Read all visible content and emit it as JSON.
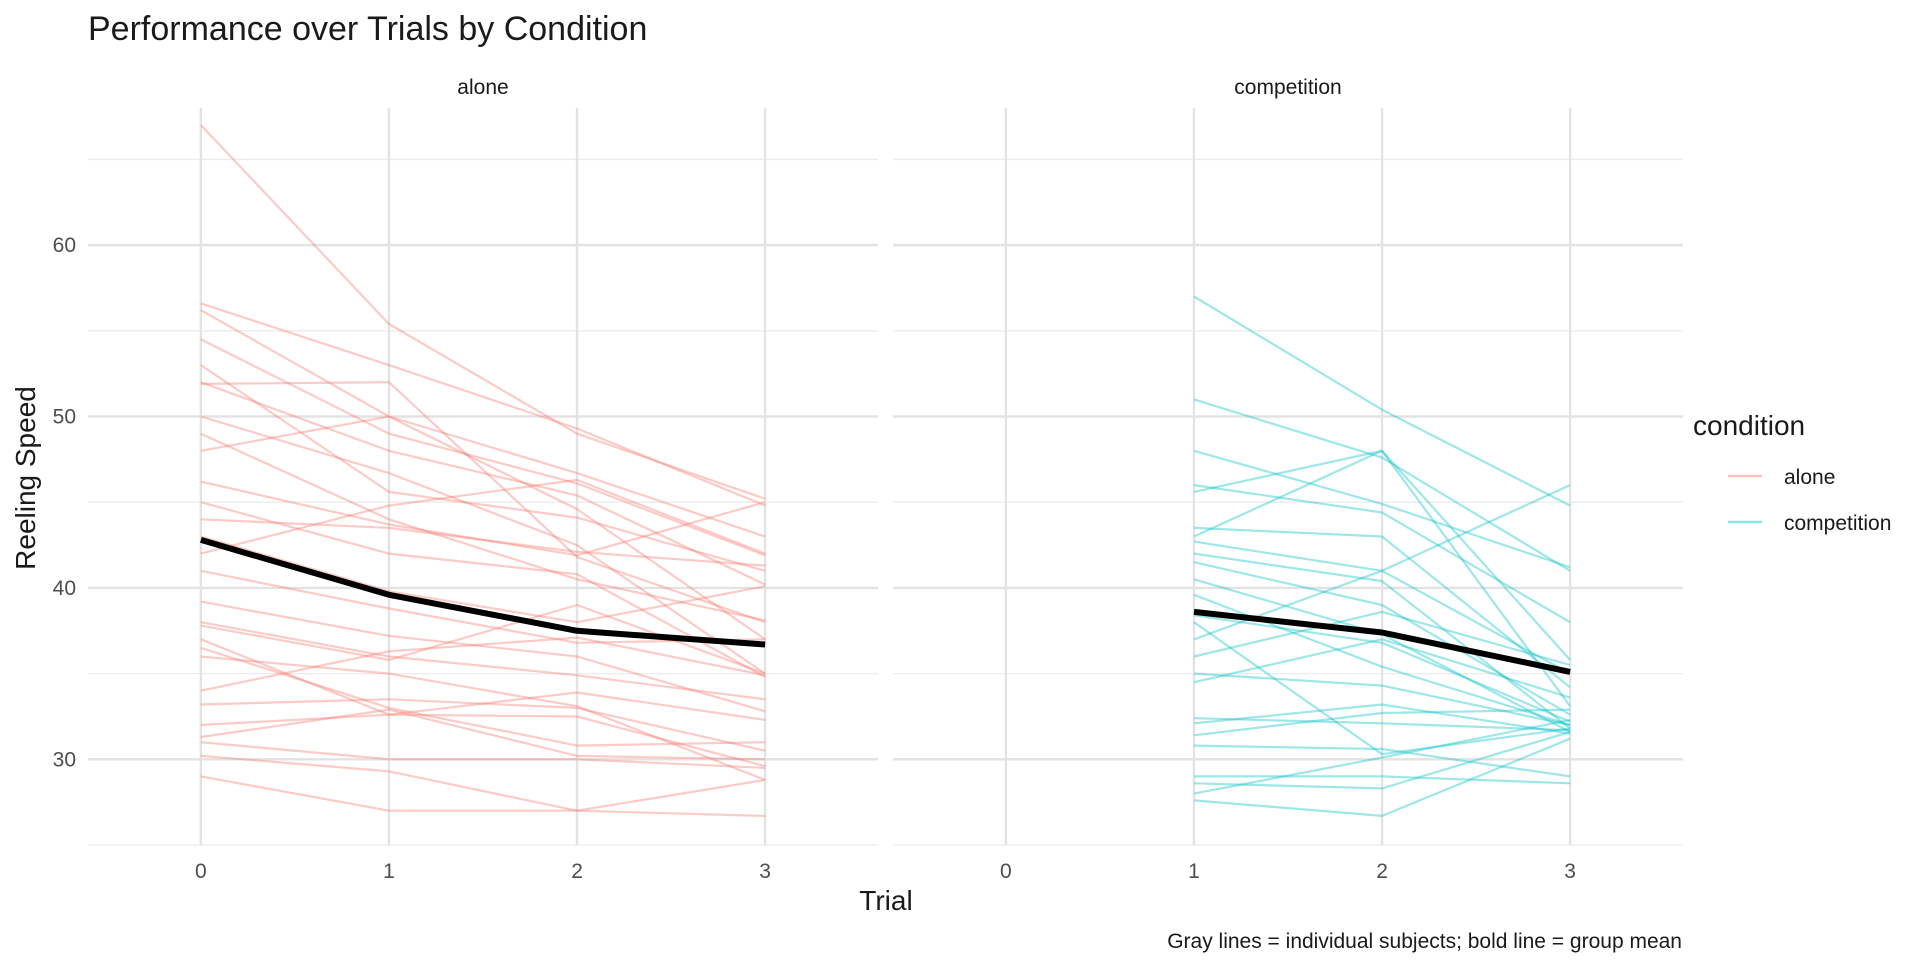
{
  "chart_data": {
    "type": "line",
    "title": "Performance over Trials by Condition",
    "xlabel": "Trial",
    "ylabel": "Reeling Speed",
    "caption": "Gray lines = individual subjects; bold line = group mean",
    "x_ticks": [
      0,
      1,
      2,
      3
    ],
    "xlim": [
      -0.6,
      3.6
    ],
    "y_ticks": [
      30,
      40,
      50,
      60
    ],
    "ylim": [
      25,
      68
    ],
    "grid": true,
    "legend": {
      "title": "condition",
      "position": "right",
      "entries": [
        {
          "label": "alone",
          "color": "#F8766D"
        },
        {
          "label": "competition",
          "color": "#00BFC4"
        }
      ]
    },
    "panels": [
      {
        "label": "alone",
        "color": "#F8766D",
        "mean": {
          "x": [
            0,
            1,
            2,
            3
          ],
          "y": [
            42.8,
            39.6,
            37.5,
            36.7
          ]
        },
        "subjects": [
          [
            67.0,
            55.4,
            49.0,
            45.2
          ],
          [
            56.6,
            53.0,
            49.3,
            44.8
          ],
          [
            56.2,
            50.0,
            46.7,
            43.0
          ],
          [
            54.5,
            49.0,
            46.1,
            41.9
          ],
          [
            53.0,
            45.6,
            44.1,
            41.0
          ],
          [
            52.0,
            48.0,
            45.4,
            40.2
          ],
          [
            51.9,
            52.0,
            41.8,
            38.0
          ],
          [
            50.0,
            46.7,
            42.5,
            35.0
          ],
          [
            49.0,
            44.0,
            40.5,
            38.1
          ],
          [
            48.0,
            50.0,
            44.6,
            37.0
          ],
          [
            46.2,
            43.7,
            41.9,
            45.0
          ],
          [
            45.0,
            42.0,
            40.8,
            34.8
          ],
          [
            44.0,
            43.5,
            42.1,
            41.3
          ],
          [
            43.0,
            39.8,
            38.0,
            40.1
          ],
          [
            42.0,
            44.8,
            46.3,
            42.0
          ],
          [
            41.0,
            38.8,
            36.8,
            37.0
          ],
          [
            39.2,
            37.2,
            36.0,
            32.8
          ],
          [
            38.0,
            36.0,
            34.9,
            33.5
          ],
          [
            37.8,
            35.8,
            39.0,
            35.0
          ],
          [
            37.0,
            32.6,
            33.9,
            32.3
          ],
          [
            36.5,
            33.0,
            30.8,
            31.0
          ],
          [
            36.0,
            35.0,
            33.1,
            28.8
          ],
          [
            34.0,
            36.3,
            37.1,
            34.9
          ],
          [
            33.2,
            33.5,
            33.0,
            30.5
          ],
          [
            32.0,
            32.6,
            32.5,
            29.6
          ],
          [
            31.3,
            32.9,
            30.2,
            30.0
          ],
          [
            31.0,
            30.0,
            30.0,
            29.5
          ],
          [
            30.2,
            29.3,
            27.0,
            28.8
          ],
          [
            29.0,
            27.0,
            27.0,
            26.7
          ]
        ]
      },
      {
        "label": "competition",
        "color": "#00BFC4",
        "mean": {
          "x": [
            1,
            2,
            3
          ],
          "y": [
            38.6,
            37.4,
            35.1
          ]
        },
        "subjects": [
          [
            57.0,
            50.4,
            44.8
          ],
          [
            51.0,
            47.6,
            41.0
          ],
          [
            48.0,
            44.9,
            41.2
          ],
          [
            46.0,
            44.4,
            38.0
          ],
          [
            45.6,
            48.0,
            35.8
          ],
          [
            43.5,
            43.0,
            34.2
          ],
          [
            43.0,
            48.0,
            33.1
          ],
          [
            42.7,
            41.0,
            35.0
          ],
          [
            42.0,
            40.4,
            31.8
          ],
          [
            41.5,
            39.0,
            32.6
          ],
          [
            40.5,
            37.3,
            31.6
          ],
          [
            39.6,
            35.4,
            32.0
          ],
          [
            38.4,
            36.8,
            32.2
          ],
          [
            38.0,
            30.3,
            31.8
          ],
          [
            37.0,
            41.0,
            46.0
          ],
          [
            36.0,
            38.6,
            35.5
          ],
          [
            35.0,
            34.3,
            32.0
          ],
          [
            34.5,
            37.0,
            33.6
          ],
          [
            32.4,
            32.1,
            31.7
          ],
          [
            32.1,
            33.2,
            31.5
          ],
          [
            31.4,
            32.7,
            32.9
          ],
          [
            30.8,
            30.6,
            29.0
          ],
          [
            29.0,
            29.0,
            28.6
          ],
          [
            28.6,
            28.3,
            31.6
          ],
          [
            28.0,
            30.1,
            32.3
          ],
          [
            27.6,
            26.7,
            31.2
          ]
        ]
      }
    ]
  }
}
